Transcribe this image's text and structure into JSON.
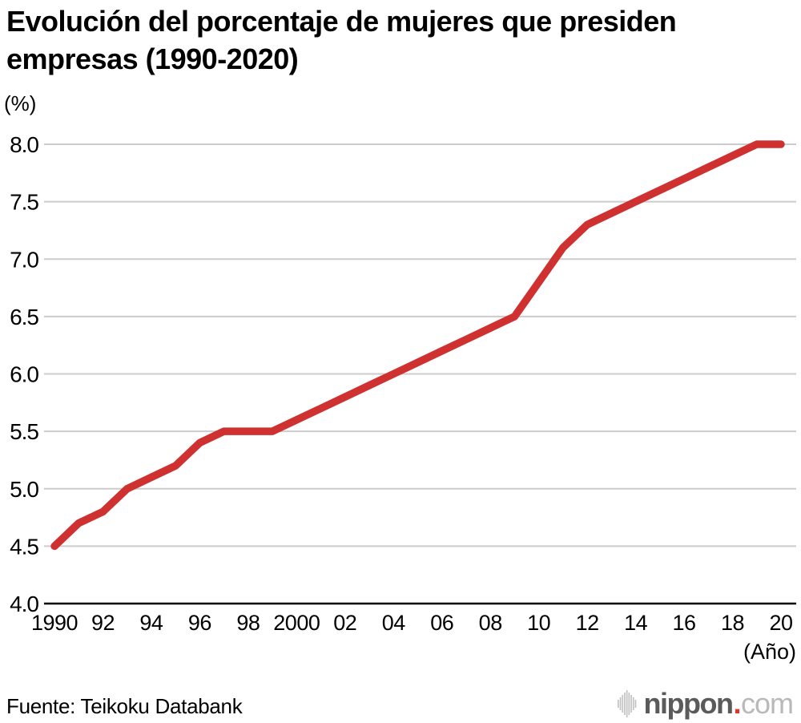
{
  "header": {
    "title_line1": "Evolución del porcentaje de mujeres que presiden",
    "title_line2": "empresas (1990-2020)"
  },
  "footer": {
    "source": "Fuente: Teikoku Databank"
  },
  "logo": {
    "icon": "waveform-bars-icon",
    "text_main": "nippon",
    "text_dot": ".",
    "text_tld": "com",
    "colors": {
      "main": "#5a5a5a",
      "dot": "#e63327",
      "tld": "#b9b9b9",
      "bars": "#c2c2c2"
    }
  },
  "chart_data": {
    "type": "line",
    "title": "Evolución del porcentaje de mujeres que presiden empresas (1990-2020)",
    "y_axis_unit": "(%)",
    "x_axis_unit": "(Año)",
    "ylim": [
      4.0,
      8.0
    ],
    "grid": "horizontal",
    "legend": "none",
    "line_color": "#cf3130",
    "grid_color": "#cccccc",
    "axis_color": "#000000",
    "y_ticks": [
      {
        "value": 8.0,
        "label": "8.0"
      },
      {
        "value": 7.5,
        "label": "7.5"
      },
      {
        "value": 7.0,
        "label": "7.0"
      },
      {
        "value": 6.5,
        "label": "6.5"
      },
      {
        "value": 6.0,
        "label": "6.0"
      },
      {
        "value": 5.5,
        "label": "5.5"
      },
      {
        "value": 5.0,
        "label": "5.0"
      },
      {
        "value": 4.5,
        "label": "4.5"
      },
      {
        "value": 4.0,
        "label": "4.0"
      }
    ],
    "x_ticks": [
      {
        "year": 1990,
        "label": "1990"
      },
      {
        "year": 1992,
        "label": "92"
      },
      {
        "year": 1994,
        "label": "94"
      },
      {
        "year": 1996,
        "label": "96"
      },
      {
        "year": 1998,
        "label": "98"
      },
      {
        "year": 2000,
        "label": "2000"
      },
      {
        "year": 2002,
        "label": "02"
      },
      {
        "year": 2004,
        "label": "04"
      },
      {
        "year": 2006,
        "label": "06"
      },
      {
        "year": 2008,
        "label": "08"
      },
      {
        "year": 2010,
        "label": "10"
      },
      {
        "year": 2012,
        "label": "12"
      },
      {
        "year": 2014,
        "label": "14"
      },
      {
        "year": 2016,
        "label": "16"
      },
      {
        "year": 2018,
        "label": "18"
      },
      {
        "year": 2020,
        "label": "20"
      }
    ],
    "x": [
      1990,
      1991,
      1992,
      1993,
      1994,
      1995,
      1996,
      1997,
      1998,
      1999,
      2000,
      2001,
      2002,
      2003,
      2004,
      2005,
      2006,
      2007,
      2008,
      2009,
      2010,
      2011,
      2012,
      2013,
      2014,
      2015,
      2016,
      2017,
      2018,
      2019,
      2020
    ],
    "series": [
      {
        "name": "Porcentaje de mujeres que presiden empresas",
        "values": [
          4.5,
          4.7,
          4.8,
          5.0,
          5.1,
          5.2,
          5.4,
          5.5,
          5.5,
          5.5,
          5.6,
          5.7,
          5.8,
          5.9,
          6.0,
          6.1,
          6.2,
          6.3,
          6.4,
          6.5,
          6.8,
          7.1,
          7.3,
          7.4,
          7.5,
          7.6,
          7.7,
          7.8,
          7.9,
          8.0,
          8.0
        ]
      }
    ]
  }
}
